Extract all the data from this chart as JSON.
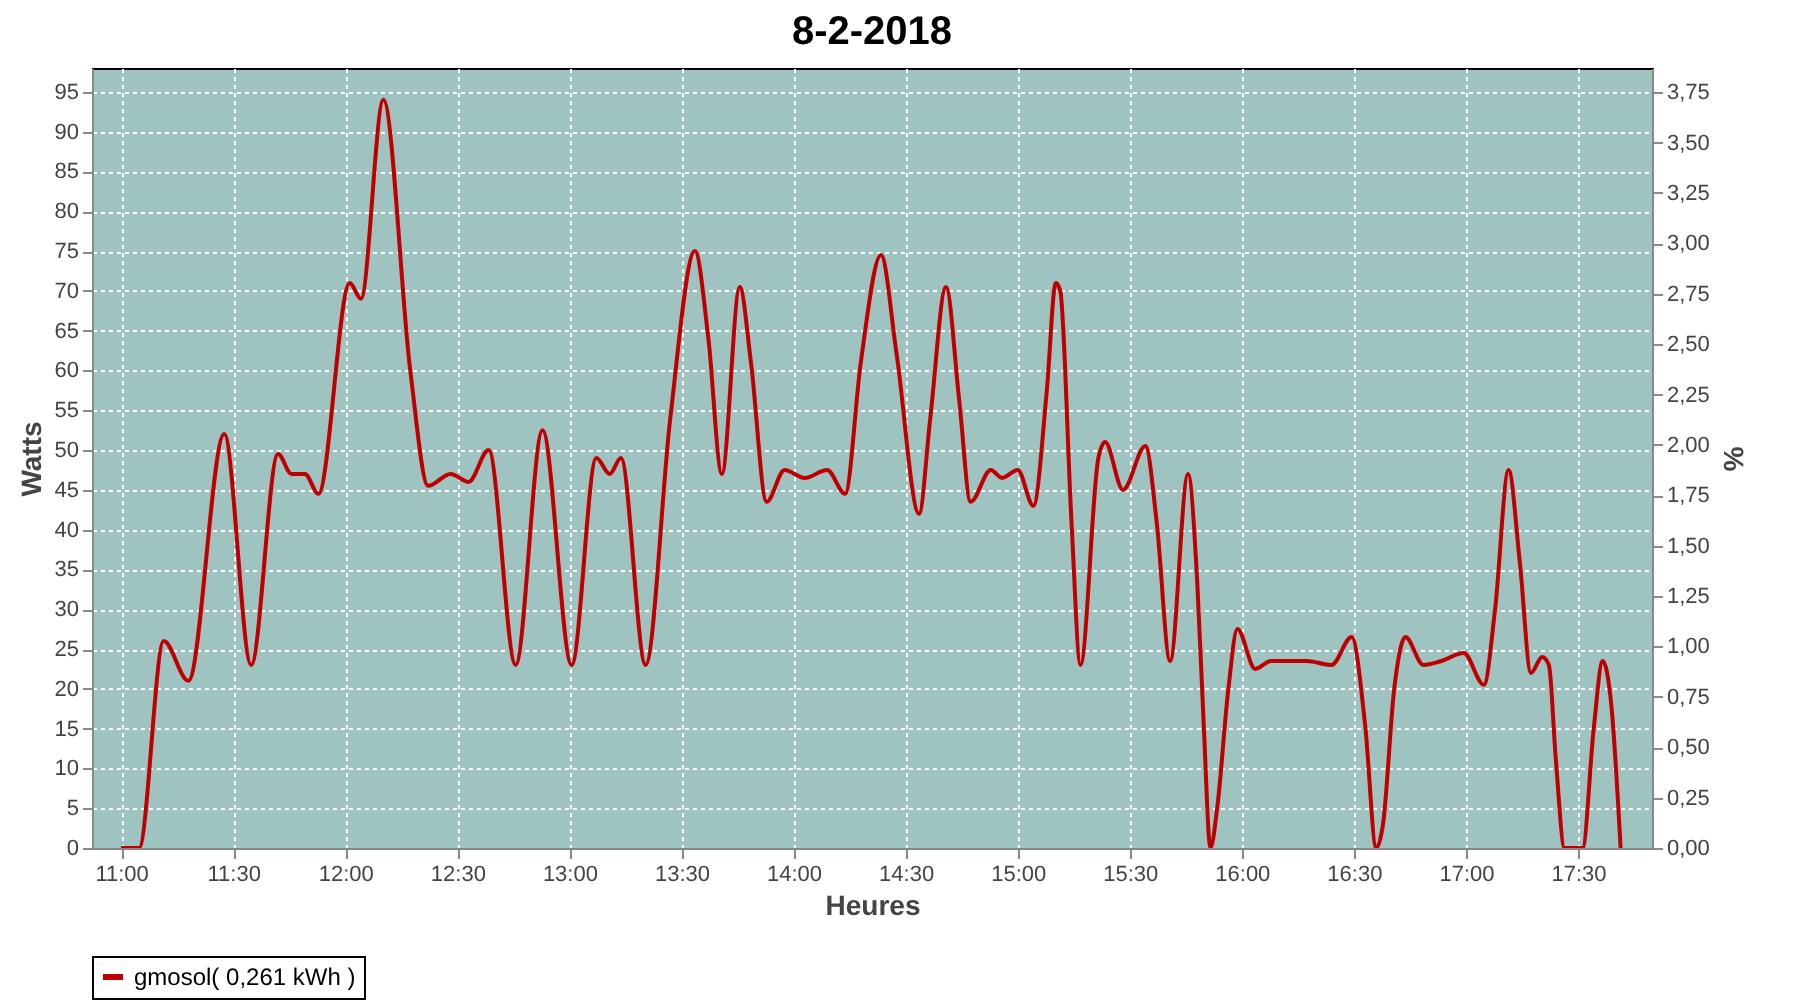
{
  "chart_data": {
    "type": "line",
    "title": "8-2-2018",
    "xlabel": "Heures",
    "ylabel": "Watts",
    "y2label": "%",
    "xlim": [
      10.87,
      17.83
    ],
    "xticks": [
      {
        "value": 11,
        "label": "11:00"
      },
      {
        "value": 11.5,
        "label": "11:30"
      },
      {
        "value": 12,
        "label": "12:00"
      },
      {
        "value": 12.5,
        "label": "12:30"
      },
      {
        "value": 13,
        "label": "13:00"
      },
      {
        "value": 13.5,
        "label": "13:30"
      },
      {
        "value": 14,
        "label": "14:00"
      },
      {
        "value": 14.5,
        "label": "14:30"
      },
      {
        "value": 15,
        "label": "15:00"
      },
      {
        "value": 15.5,
        "label": "15:30"
      },
      {
        "value": 16,
        "label": "16:00"
      },
      {
        "value": 16.5,
        "label": "16:30"
      },
      {
        "value": 17,
        "label": "17:00"
      },
      {
        "value": 17.5,
        "label": "17:30"
      }
    ],
    "ylim": [
      0,
      98
    ],
    "yticks": [
      0,
      5,
      10,
      15,
      20,
      25,
      30,
      35,
      40,
      45,
      50,
      55,
      60,
      65,
      70,
      75,
      80,
      85,
      90,
      95
    ],
    "y2lim": [
      0,
      3.87
    ],
    "y2ticks": [
      {
        "value": 0,
        "label": "0,00"
      },
      {
        "value": 0.25,
        "label": "0,25"
      },
      {
        "value": 0.5,
        "label": "0,50"
      },
      {
        "value": 0.75,
        "label": "0,75"
      },
      {
        "value": 1,
        "label": "1,00"
      },
      {
        "value": 1.25,
        "label": "1,25"
      },
      {
        "value": 1.5,
        "label": "1,50"
      },
      {
        "value": 1.75,
        "label": "1,75"
      },
      {
        "value": 2,
        "label": "2,00"
      },
      {
        "value": 2.25,
        "label": "2,25"
      },
      {
        "value": 2.5,
        "label": "2,50"
      },
      {
        "value": 2.75,
        "label": "2,75"
      },
      {
        "value": 3,
        "label": "3,00"
      },
      {
        "value": 3.25,
        "label": "3,25"
      },
      {
        "value": 3.5,
        "label": "3,50"
      },
      {
        "value": 3.75,
        "label": "3,75"
      }
    ],
    "grid": true,
    "legend": "bottom",
    "marker": "none",
    "line_style": "solid",
    "series": [
      {
        "name": "gmosol( 0,261 kWh )",
        "color": "#c00000",
        "x": [
          11,
          11.08,
          11.19,
          11.3,
          11.46,
          11.58,
          11.7,
          11.76,
          11.82,
          11.88,
          12.02,
          12.07,
          12.17,
          12.29,
          12.37,
          12.47,
          12.55,
          12.64,
          12.76,
          12.88,
          13.01,
          13.12,
          13.18,
          13.23,
          13.34,
          13.45,
          13.56,
          13.62,
          13.68,
          13.76,
          13.81,
          13.88,
          13.96,
          14.05,
          14.15,
          14.23,
          14.3,
          14.39,
          14.46,
          14.56,
          14.61,
          14.68,
          14.74,
          14.79,
          14.88,
          14.93,
          15,
          15.07,
          15.13,
          15.17,
          15.19,
          15.24,
          15.28,
          15.36,
          15.39,
          15.47,
          15.57,
          15.62,
          15.68,
          15.76,
          15.8,
          15.83,
          15.86,
          15.89,
          15.94,
          15.98,
          16.06,
          16.13,
          16.29,
          16.4,
          16.49,
          16.55,
          16.6,
          16.63,
          16.68,
          16.73,
          16.81,
          16.89,
          16.99,
          17.08,
          17.13,
          17.19,
          17.24,
          17.29,
          17.34,
          17.37,
          17.4,
          17.44,
          17.52,
          17.57,
          17.61,
          17.65,
          17.69
        ],
        "values": [
          0,
          0,
          26,
          21,
          52,
          23,
          49.5,
          47,
          47,
          44.5,
          71,
          69,
          94,
          60,
          45.5,
          47,
          46,
          50,
          23,
          52.5,
          23,
          49,
          47,
          49,
          23,
          54,
          75,
          64,
          47,
          70.5,
          61,
          43.5,
          47.5,
          46.5,
          47.5,
          44.5,
          61,
          74.5,
          62,
          42,
          54,
          70.5,
          56,
          43.5,
          47.5,
          46.5,
          47.5,
          43,
          57.5,
          71,
          70,
          41,
          23,
          49,
          51,
          45,
          50.5,
          41,
          23.5,
          47,
          34,
          15.5,
          0,
          5,
          20,
          27.5,
          22.5,
          23.5,
          23.5,
          23,
          26.5,
          15.5,
          0,
          3,
          20,
          26.5,
          23,
          23.5,
          24.5,
          20.5,
          30,
          47.5,
          36,
          22,
          24,
          23,
          11.5,
          0,
          0,
          15,
          23.5,
          17.5,
          0
        ]
      }
    ]
  }
}
